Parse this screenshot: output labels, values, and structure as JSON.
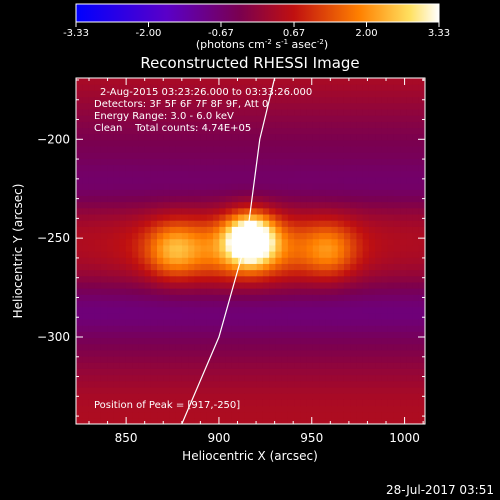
{
  "colorbar": {
    "ticks": [
      "-3.33",
      "-2.00",
      "-0.67",
      "0.67",
      "2.00",
      "3.33"
    ],
    "tick_values": [
      -3.33,
      -2.0,
      -0.67,
      0.67,
      2.0,
      3.33
    ],
    "range": [
      -3.33,
      3.33
    ],
    "unit_parts": [
      "(photons cm",
      "-2",
      " s",
      "-1",
      " asec",
      "-2",
      ")"
    ],
    "colormap": [
      "#0000ff",
      "#7a00b4",
      "#c0301a",
      "#ff8c00",
      "#ffffff"
    ]
  },
  "chart_data": {
    "type": "heatmap",
    "title": "Reconstructed RHESSI Image",
    "xlabel": "Heliocentric X (arcsec)",
    "ylabel": "Heliocentric Y (arcsec)",
    "xlim": [
      823,
      1011
    ],
    "ylim": [
      -344,
      -169
    ],
    "xticks": [
      850,
      900,
      950,
      1000
    ],
    "yticks": [
      -200,
      -250,
      -300
    ],
    "annotations": [
      "2-Aug-2015 03:23:26.000 to 03:33:26.000",
      "Detectors: 3F 5F 6F 7F 8F 9F, Att 0",
      "Energy Range: 3.0 - 6.0 keV",
      "Clean    Total counts: 4.74E+05"
    ],
    "peak_label": "Position of Peak = [917,-250]",
    "peak": [
      917,
      -250
    ],
    "sources": [
      {
        "x": 917,
        "y": -250,
        "peak": 3.33,
        "sx": 9,
        "sy": 9
      },
      {
        "x": 912,
        "y": -256,
        "peak": 1.6,
        "sx": 32,
        "sy": 12
      },
      {
        "x": 875,
        "y": -256,
        "peak": 1.3,
        "sx": 10,
        "sy": 10
      },
      {
        "x": 960,
        "y": -256,
        "peak": 1.2,
        "sx": 10,
        "sy": 10
      }
    ],
    "limb_curve": [
      [
        880,
        -344
      ],
      [
        900,
        -300
      ],
      [
        915,
        -250
      ],
      [
        922,
        -200
      ],
      [
        930,
        -169
      ]
    ]
  },
  "timestamp": "28-Jul-2017 03:51"
}
